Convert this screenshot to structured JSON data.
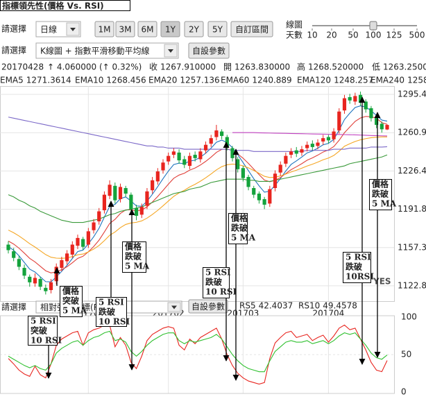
{
  "header": {
    "title": "指標領先性(價格 Vs. RSI)"
  },
  "controls": {
    "select_label": "請選擇",
    "period": "日線",
    "ranges": [
      "1M",
      "3M",
      "6M",
      "1Y",
      "2Y",
      "5Y"
    ],
    "active_range": "1Y",
    "custom": "自訂區間",
    "days_label": [
      "線圖",
      "天數"
    ],
    "days_ticks": [
      10,
      20,
      50,
      100,
      125,
      500
    ],
    "days_selected": 100,
    "chart_select_label": "請選擇",
    "chart_type": "K線圖 + 指數平滑移動平均線",
    "params": "自設參數"
  },
  "quote": {
    "date": "20170428",
    "change": "↑ 4.060000 (↑ 0.32%)",
    "close_label": "收",
    "close": "1267.910000",
    "open_label": "開",
    "open": "1263.830000",
    "high_label": "高",
    "high": "1268.520000",
    "low_label": "低",
    "low": "1263.25000"
  },
  "indicator_controls": {
    "select_label": "請選擇",
    "indicator": "相對強弱指標(RSI)",
    "params": "自設參數"
  },
  "watermark": "YES",
  "annotations": [
    {
      "lines": [
        "價格",
        "突破",
        "5 MA"
      ]
    },
    {
      "lines": [
        "5 RSI",
        "突破",
        "10 RSI"
      ]
    },
    {
      "lines": [
        "5 RSI",
        "跌破",
        "10 RSI"
      ]
    },
    {
      "lines": [
        "價格",
        "跌破",
        "5 MA"
      ]
    },
    {
      "lines": [
        "價格",
        "跌破",
        "5 MA"
      ]
    },
    {
      "lines": [
        "5 RSI",
        "跌破",
        "10 RSI"
      ]
    },
    {
      "lines": [
        "5 RSI",
        "跌破",
        "10RSI"
      ]
    },
    {
      "lines": [
        "價格",
        "跌破",
        "5 MA"
      ]
    }
  ],
  "chart_data": [
    {
      "type": "candlestick",
      "up_color": "#e8251f",
      "down_color": "#14a33c",
      "grid": true,
      "categories": [
        null,
        null,
        null,
        null,
        null,
        null,
        null,
        null,
        null,
        null,
        null,
        null,
        null,
        null,
        null,
        "201701",
        null,
        null,
        null,
        null,
        null,
        null,
        null,
        null,
        null,
        null,
        null,
        null,
        null,
        null,
        "201702",
        null,
        null,
        null,
        null,
        null,
        null,
        null,
        null,
        null,
        null,
        null,
        null,
        null,
        "201703",
        null,
        null,
        null,
        null,
        null,
        null,
        null,
        null,
        null,
        null,
        null,
        null,
        null,
        null,
        null,
        "201704",
        null,
        null,
        null,
        null,
        null,
        null,
        null,
        null,
        null,
        null,
        null
      ],
      "open": [
        1160,
        1154,
        1147,
        1139,
        1131,
        1125,
        1129,
        1121,
        1119,
        1127,
        1139,
        1145,
        1151,
        1159,
        1165,
        1160,
        1173,
        1181,
        1191,
        1204,
        1213,
        1201,
        1211,
        1205,
        1193,
        1187,
        1195,
        1209,
        1217,
        1227,
        1235,
        1241,
        1243,
        1237,
        1231,
        1241,
        1237,
        1245,
        1251,
        1257,
        1262,
        1257,
        1247,
        1237,
        1229,
        1221,
        1211,
        1206,
        1201,
        1197,
        1211,
        1225,
        1233,
        1241,
        1245,
        1243,
        1247,
        1251,
        1249,
        1253,
        1257,
        1255,
        1263,
        1281,
        1293,
        1289,
        1295,
        1289,
        1283,
        1275,
        1269,
        1263.83
      ],
      "high": [
        1163,
        1157,
        1150,
        1142,
        1133,
        1134,
        1131,
        1124,
        1129,
        1143,
        1149,
        1155,
        1163,
        1169,
        1167,
        1175,
        1183,
        1193,
        1208,
        1218,
        1216,
        1215,
        1213,
        1207,
        1196,
        1197,
        1211,
        1221,
        1229,
        1237,
        1243,
        1247,
        1246,
        1240,
        1243,
        1244,
        1247,
        1253,
        1259,
        1268,
        1264,
        1259,
        1249,
        1239,
        1231,
        1223,
        1213,
        1208,
        1203,
        1213,
        1227,
        1235,
        1243,
        1247,
        1248,
        1249,
        1253,
        1254,
        1255,
        1259,
        1259,
        1265,
        1283,
        1295,
        1296,
        1297,
        1298,
        1291,
        1285,
        1277,
        1271,
        1268.52
      ],
      "low": [
        1152,
        1145,
        1137,
        1129,
        1122,
        1122,
        1119,
        1115,
        1116,
        1124,
        1136,
        1142,
        1148,
        1156,
        1155,
        1157,
        1170,
        1178,
        1188,
        1201,
        1197,
        1198,
        1203,
        1189,
        1182,
        1184,
        1192,
        1206,
        1214,
        1224,
        1232,
        1238,
        1233,
        1229,
        1228,
        1235,
        1234,
        1242,
        1248,
        1254,
        1255,
        1245,
        1235,
        1225,
        1217,
        1209,
        1202,
        1197,
        1192,
        1194,
        1208,
        1222,
        1230,
        1238,
        1239,
        1240,
        1244,
        1245,
        1246,
        1250,
        1251,
        1252,
        1260,
        1278,
        1287,
        1286,
        1285,
        1279,
        1271,
        1265,
        1261,
        1263.25
      ],
      "close": [
        1155,
        1148,
        1140,
        1132,
        1126,
        1130,
        1122,
        1118,
        1126,
        1140,
        1146,
        1152,
        1160,
        1166,
        1158,
        1172,
        1180,
        1190,
        1205,
        1214,
        1200,
        1212,
        1206,
        1192,
        1186,
        1194,
        1208,
        1218,
        1226,
        1234,
        1240,
        1244,
        1236,
        1232,
        1240,
        1238,
        1244,
        1250,
        1256,
        1263,
        1258,
        1248,
        1238,
        1228,
        1220,
        1212,
        1205,
        1200,
        1196,
        1210,
        1224,
        1232,
        1240,
        1244,
        1242,
        1246,
        1250,
        1248,
        1252,
        1256,
        1254,
        1262,
        1280,
        1292,
        1290,
        1294,
        1288,
        1282,
        1274,
        1268,
        1264,
        1267.91
      ],
      "series": [
        {
          "name": "EMA5",
          "color": "#1e73be",
          "values": [
            1158.3,
            1154.9,
            1149.9,
            1143.9,
            1137.9,
            1135.3,
            1130.9,
            1126.6,
            1126.4,
            1130.9,
            1135.9,
            1141.3,
            1147.5,
            1153.7,
            1155.1,
            1160.7,
            1167.1,
            1174.7,
            1184.8,
            1194.5,
            1196.3,
            1201.5,
            1203,
            1199.3,
            1194.9,
            1194.6,
            1199.1,
            1205.4,
            1212.3,
            1219.5,
            1226.3,
            1232.2,
            1233.5,
            1233,
            1235.3,
            1236.2,
            1238.8,
            1242.5,
            1247,
            1252.3,
            1254.2,
            1252.1,
            1247.4,
            1241,
            1234,
            1226.7,
            1219.4,
            1213,
            1207.3,
            1208.2,
            1213.5,
            1219.6,
            1226.4,
            1232.3,
            1235.5,
            1239,
            1242.7,
            1244.4,
            1247,
            1250,
            1251.3,
            1254.9,
            1263.3,
            1272.8,
            1278.5,
            1283.7,
            1285.1,
            1284.1,
            1280.7,
            1276.5,
            1272.3,
            1271.3614
          ]
        },
        {
          "name": "EMA10",
          "color": "#e0403a",
          "values": [
            1163.2,
            1160.5,
            1156.8,
            1152.3,
            1147.6,
            1144.4,
            1140.4,
            1136.4,
            1134.5,
            1135.5,
            1137.4,
            1140,
            1143.6,
            1147.6,
            1149.5,
            1153.5,
            1158.3,
            1164,
            1171.4,
            1179.1,
            1182.8,
            1188.1,
            1191.3,
            1191.4,
            1190.4,
            1191.1,
            1194.1,
            1198.4,
            1203.4,
            1208.9,
            1214.5,
            1219.8,
            1222.7,
            1224.4,
            1227.2,
            1229.1,
            1231.8,
            1235.1,
            1238.9,
            1243.2,
            1245.9,
            1246.3,
            1244.8,
            1241.8,
            1237.9,
            1233.2,
            1228.1,
            1223.1,
            1218.2,
            1216.7,
            1218,
            1220.5,
            1224,
            1227.6,
            1230.2,
            1233,
            1236.1,
            1238.2,
            1240.7,
            1243.5,
            1245.4,
            1248.4,
            1254.1,
            1260.9,
            1266.1,
            1271.1,
            1274.2,
            1275.6,
            1275.3,
            1274,
            1270,
            1268.456
          ]
        },
        {
          "name": "EMA20",
          "color": "#f5a623",
          "values": [
            1173.1,
            1170.7,
            1167.8,
            1164.4,
            1160.8,
            1157.8,
            1154.4,
            1151,
            1148.6,
            1147.8,
            1147.6,
            1148,
            1149.2,
            1150.8,
            1151.5,
            1153.4,
            1156,
            1159.2,
            1163.6,
            1168.4,
            1171.4,
            1175.3,
            1178.2,
            1179.5,
            1180.1,
            1181.4,
            1183.9,
            1187.2,
            1190.9,
            1195,
            1199.3,
            1203.5,
            1206.6,
            1209,
            1212,
            1214.4,
            1217.2,
            1220.3,
            1223.7,
            1227.4,
            1230.3,
            1232,
            1232.6,
            1232.2,
            1231,
            1229.2,
            1226.9,
            1224.3,
            1221.6,
            1220.5,
            1220.8,
            1221.9,
            1223.6,
            1225.5,
            1227.1,
            1228.9,
            1230.9,
            1232.5,
            1234.4,
            1236.5,
            1238.1,
            1240.4,
            1244.2,
            1248.7,
            1251,
            1253,
            1254.5,
            1255.6,
            1256.4,
            1256.9,
            1257.1,
            1257.136
          ]
        },
        {
          "name": "EMA60",
          "color": "#3a9a3a",
          "values": [
            1205,
            1203,
            1200,
            1198,
            1195,
            1193,
            1190,
            1188,
            1186,
            1184,
            1182,
            1181,
            1180,
            1180,
            1180,
            1181,
            1182,
            1183,
            1185,
            1187,
            1188,
            1190,
            1191,
            1192,
            1193,
            1194,
            1196,
            1198,
            1200,
            1202,
            1204,
            1206,
            1207,
            1208,
            1210,
            1211,
            1212,
            1214,
            1216,
            1217,
            1218,
            1219,
            1219,
            1219,
            1219,
            1218,
            1218,
            1217,
            1217,
            1217,
            1218,
            1219,
            1220,
            1221,
            1222,
            1223,
            1224,
            1225,
            1226,
            1227,
            1228,
            1229,
            1230,
            1231,
            1233,
            1234,
            1235,
            1236,
            1237,
            1238,
            1239,
            1240.889
          ]
        },
        {
          "name": "EMA120",
          "color": "#7b68c8",
          "values": [
            1275,
            1274,
            1273,
            1272,
            1271,
            1270,
            1269,
            1268,
            1267,
            1266,
            1265,
            1264,
            1263,
            1262,
            1261,
            1260,
            1259,
            1258,
            1257,
            1256,
            1255,
            1254,
            1253,
            1252,
            1251,
            1250,
            1249,
            1249,
            1248,
            1248,
            1247,
            1247,
            1247,
            1246,
            1246,
            1246,
            1246,
            1246,
            1246,
            1246,
            1246,
            1246,
            1245,
            1245,
            1245,
            1245,
            1244,
            1244,
            1244,
            1244,
            1244,
            1244,
            1244,
            1244,
            1244,
            1244,
            1245,
            1245,
            1245,
            1245,
            1245,
            1246,
            1246,
            1246,
            1247,
            1247,
            1247,
            1247,
            1248,
            1248,
            1248,
            1248.257
          ]
        },
        {
          "name": "EMA240",
          "color": "#c040c0",
          "values": [
            null,
            null,
            null,
            null,
            null,
            null,
            null,
            null,
            null,
            null,
            null,
            null,
            null,
            null,
            null,
            null,
            null,
            null,
            null,
            null,
            null,
            null,
            null,
            null,
            null,
            null,
            null,
            null,
            null,
            null,
            null,
            null,
            null,
            null,
            null,
            null,
            null,
            null,
            null,
            null,
            null,
            null,
            1261,
            1261,
            1261,
            1261,
            1261,
            1260.8,
            1260.7,
            1260.6,
            1260.5,
            1260.4,
            1260.3,
            1260.2,
            1260.1,
            1260,
            1259.9,
            1259.8,
            1259.7,
            1259.6,
            1259.5,
            1259.4,
            1259.3,
            1259.2,
            1259.1,
            1259,
            1258.8,
            1258.6,
            1258.4,
            1258.3,
            1258.1,
            1258
          ]
        }
      ],
      "ylim": [
        1109,
        1303
      ],
      "yticks": [
        1122.81,
        1157.34,
        1191.87,
        {
          "value": 1226.4,
          "label": "1226.40"
        },
        1260.93,
        1295.46
      ]
    },
    {
      "type": "line",
      "grid": true,
      "series": [
        {
          "name": "RS5",
          "color": "#e8251f",
          "values": [
            45,
            38,
            30,
            25,
            22,
            35,
            24,
            20,
            38,
            62,
            70,
            74,
            78,
            80,
            62,
            78,
            82,
            84,
            88,
            88,
            60,
            72,
            62,
            40,
            32,
            48,
            68,
            76,
            80,
            84,
            86,
            84,
            62,
            56,
            70,
            64,
            72,
            76,
            80,
            84,
            70,
            50,
            36,
            26,
            20,
            16,
            14,
            12,
            14,
            45,
            65,
            72,
            78,
            80,
            72,
            74,
            76,
            68,
            72,
            75,
            66,
            74,
            84,
            88,
            82,
            84,
            70,
            56,
            40,
            30,
            28,
            42.4037
          ]
        },
        {
          "name": "RS10",
          "color": "#2fc02f",
          "values": [
            48,
            44,
            40,
            36,
            33,
            36,
            32,
            30,
            38,
            52,
            58,
            62,
            66,
            68,
            62,
            68,
            72,
            74,
            78,
            80,
            68,
            70,
            66,
            54,
            48,
            54,
            62,
            68,
            72,
            76,
            78,
            78,
            68,
            64,
            68,
            66,
            68,
            70,
            72,
            76,
            70,
            60,
            50,
            42,
            36,
            32,
            30,
            28,
            28,
            42,
            54,
            60,
            66,
            68,
            66,
            66,
            68,
            64,
            66,
            68,
            64,
            68,
            74,
            78,
            76,
            78,
            70,
            62,
            52,
            46,
            44,
            49.4578
          ]
        }
      ],
      "ylim": [
        0,
        100
      ],
      "yticks": [
        0,
        50,
        100
      ]
    }
  ]
}
